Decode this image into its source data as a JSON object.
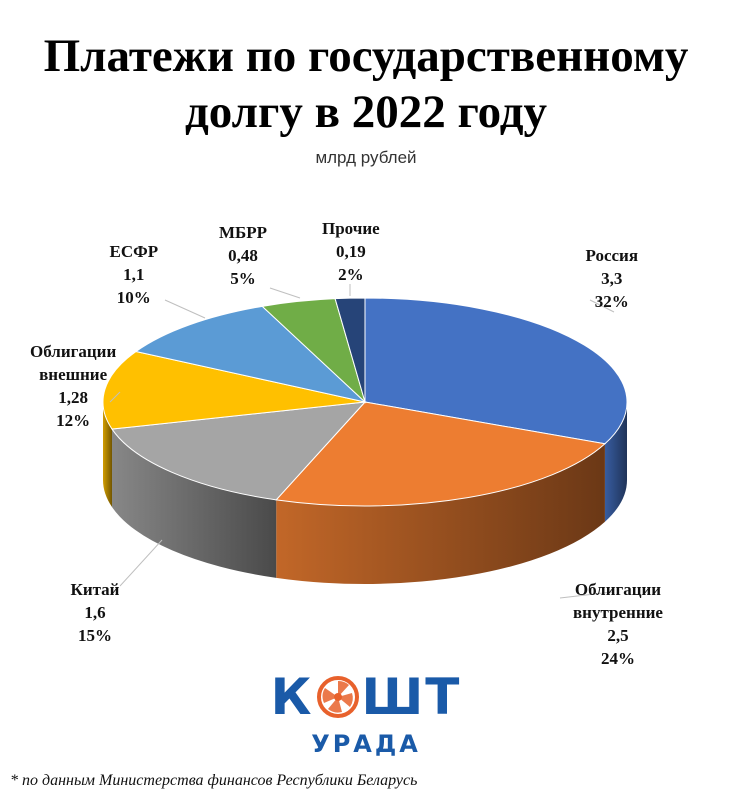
{
  "chart_data": {
    "type": "pie",
    "title": "Платежи по государственному долгу в 2022 году",
    "title_lines": [
      "Платежи по государственному",
      "долгу в 2022 году"
    ],
    "subtitle": "млрд рублей",
    "categories": [
      "Россия",
      "Облигации внутренние",
      "Китай",
      "Облигации внешние",
      "ЕСФР",
      "МБРР",
      "Прочие"
    ],
    "values": [
      3.3,
      2.5,
      1.6,
      1.28,
      1.1,
      0.48,
      0.19
    ],
    "percents": [
      32,
      24,
      15,
      12,
      10,
      5,
      2
    ],
    "slices": [
      {
        "name_lines": [
          "Россия"
        ],
        "value_text": "3,3",
        "percent_text": "32%",
        "color": "#4472C4"
      },
      {
        "name_lines": [
          "Облигации",
          "внутренние"
        ],
        "value_text": "2,5",
        "percent_text": "24%",
        "color": "#ED7D31"
      },
      {
        "name_lines": [
          "Китай"
        ],
        "value_text": "1,6",
        "percent_text": "15%",
        "color": "#A5A5A5"
      },
      {
        "name_lines": [
          "Облигации",
          "внешние"
        ],
        "value_text": "1,28",
        "percent_text": "12%",
        "color": "#FFC000"
      },
      {
        "name_lines": [
          "ЕСФР"
        ],
        "value_text": "1,1",
        "percent_text": "10%",
        "color": "#5B9BD5"
      },
      {
        "name_lines": [
          "МБРР"
        ],
        "value_text": "0,48",
        "percent_text": "5%",
        "color": "#70AD47"
      },
      {
        "name_lines": [
          "Прочие"
        ],
        "value_text": "0,19",
        "percent_text": "2%",
        "color": "#264478"
      }
    ]
  },
  "logo": {
    "part1": "К",
    "part2": "ШТ",
    "subtitle": "УРАДА",
    "color": "#1a5aa8",
    "accent_color": "#e8612c",
    "mark_icon": "orange-slice-logo-icon"
  },
  "footnote": "* по данным Министерства финансов Республики Беларусь"
}
